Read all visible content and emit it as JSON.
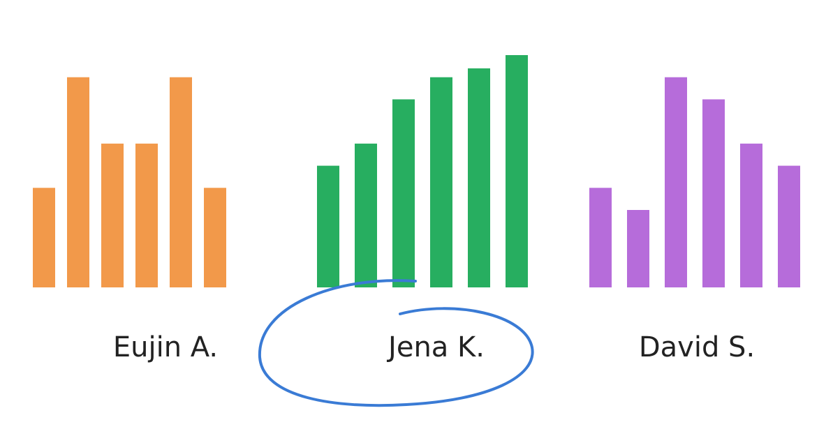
{
  "chart_data": [
    {
      "type": "bar",
      "title": "Eujin A.",
      "color": "#f2994a",
      "values": [
        4.5,
        9.5,
        6.5,
        6.5,
        9.5,
        4.5
      ],
      "ylim": [
        0,
        10.5
      ]
    },
    {
      "type": "bar",
      "title": "Jena K.",
      "color": "#27ae60",
      "values": [
        5.5,
        6.5,
        8.5,
        9.5,
        9.9,
        10.5
      ],
      "ylim": [
        0,
        10.5
      ]
    },
    {
      "type": "bar",
      "title": "David S.",
      "color": "#b66cda",
      "values": [
        4.5,
        3.5,
        9.5,
        8.5,
        6.5,
        5.5
      ],
      "ylim": [
        0,
        10.5
      ]
    }
  ]
}
